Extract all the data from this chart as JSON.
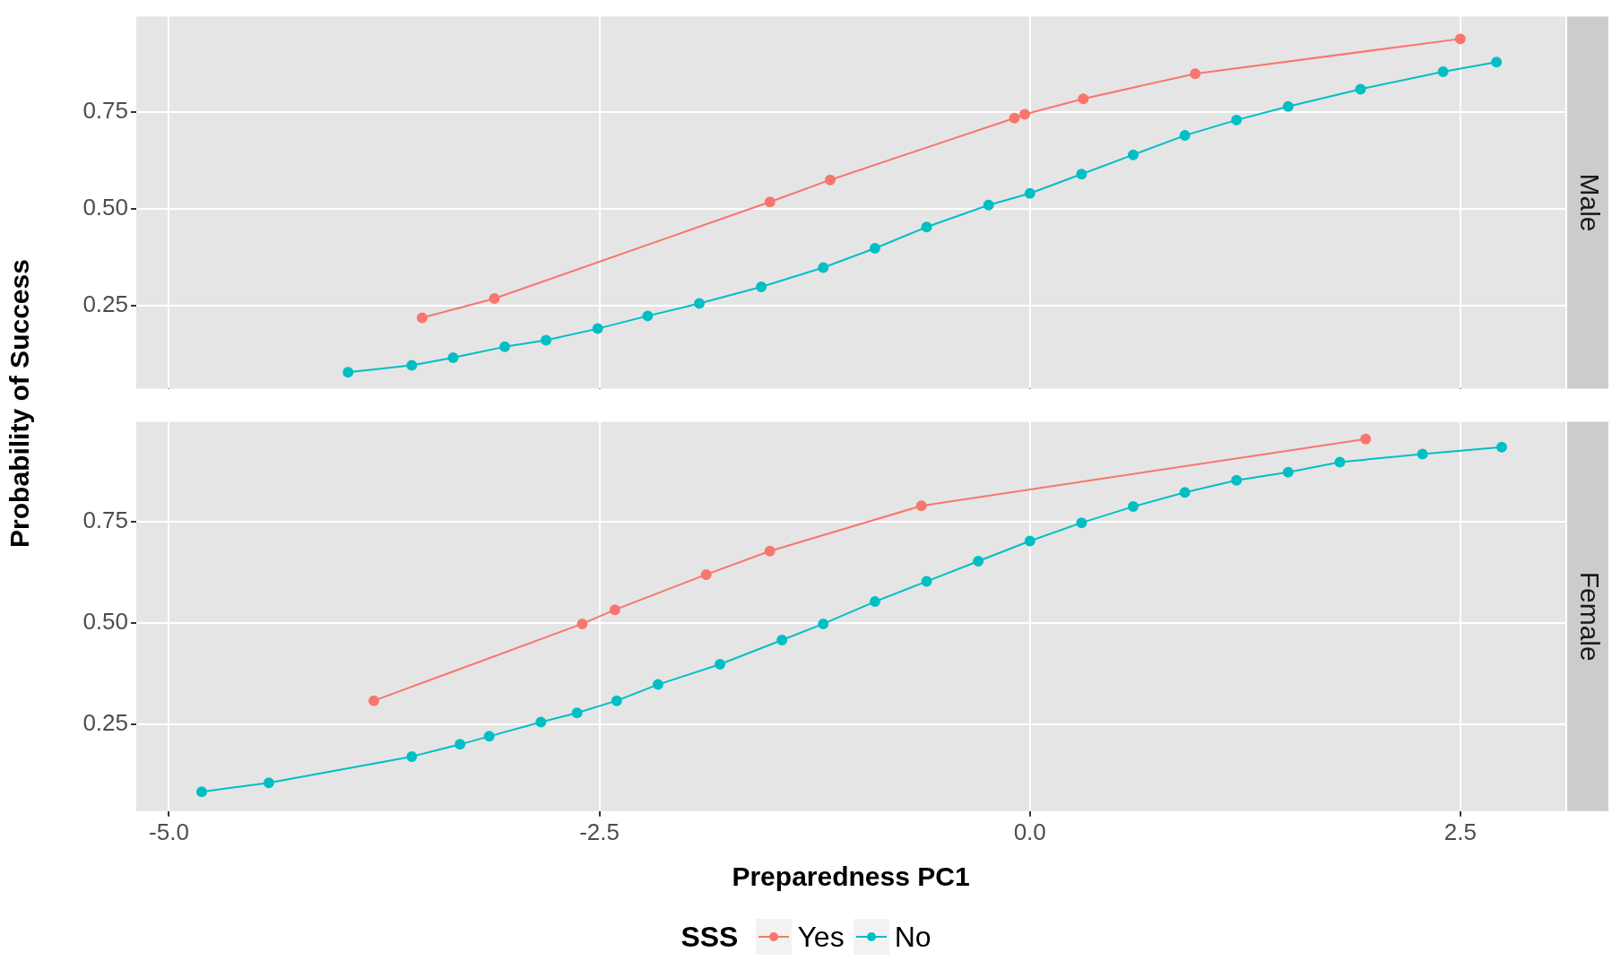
{
  "chart_data": [
    {
      "type": "line",
      "title": "Male",
      "ylabel": "Probability of Success",
      "legend": "bottom",
      "legend_title": "SSS",
      "marker": "circle",
      "grid": true,
      "tick_labels": "y",
      "xlim": [
        -5.19,
        3.11
      ],
      "ylim": [
        0.035,
        0.9975
      ],
      "xticks": [
        {
          "value": -5,
          "label": null
        },
        {
          "value": -2.5,
          "label": null
        },
        {
          "value": 0,
          "label": null
        },
        {
          "value": 2.5,
          "label": null
        }
      ],
      "yticks": [
        {
          "value": 0.25,
          "label": "0.25"
        },
        {
          "value": 0.5,
          "label": "0.50"
        },
        {
          "value": 0.75,
          "label": "0.75"
        }
      ],
      "series": [
        {
          "name": "Yes",
          "color": "#f8766d",
          "x": [
            -3.53,
            -3.11,
            -1.51,
            -1.16,
            -0.09,
            -0.03,
            0.31,
            0.96,
            2.5
          ],
          "values": [
            0.218,
            0.268,
            0.518,
            0.575,
            0.735,
            0.745,
            0.785,
            0.85,
            0.94
          ]
        },
        {
          "name": "No",
          "color": "#00bfc4",
          "x": [
            -3.96,
            -3.59,
            -3.35,
            -3.05,
            -2.81,
            -2.51,
            -2.22,
            -1.92,
            -1.56,
            -1.2,
            -0.9,
            -0.6,
            -0.24,
            0,
            0.3,
            0.6,
            0.9,
            1.2,
            1.5,
            1.92,
            2.4,
            2.71
          ],
          "values": [
            0.077,
            0.095,
            0.115,
            0.143,
            0.16,
            0.19,
            0.223,
            0.255,
            0.298,
            0.348,
            0.398,
            0.453,
            0.51,
            0.54,
            0.59,
            0.64,
            0.69,
            0.73,
            0.765,
            0.81,
            0.855,
            0.88
          ]
        }
      ]
    },
    {
      "type": "line",
      "title": "Female",
      "xlabel": "Preparedness PC1",
      "marker": "circle",
      "grid": true,
      "xlim": [
        -5.19,
        3.11
      ],
      "ylim": [
        0.035,
        0.9975
      ],
      "xticks": [
        {
          "value": -5,
          "label": "-5.0"
        },
        {
          "value": -2.5,
          "label": "-2.5"
        },
        {
          "value": 0,
          "label": "0.0"
        },
        {
          "value": 2.5,
          "label": "2.5"
        }
      ],
      "yticks": [
        {
          "value": 0.25,
          "label": "0.25"
        },
        {
          "value": 0.5,
          "label": "0.50"
        },
        {
          "value": 0.75,
          "label": "0.75"
        }
      ],
      "series": [
        {
          "color": "#f8766d",
          "x": [
            -3.81,
            -2.6,
            -2.41,
            -1.88,
            -1.51,
            -0.63,
            1.95
          ],
          "values": [
            0.308,
            0.498,
            0.533,
            0.62,
            0.678,
            0.79,
            0.955
          ]
        },
        {
          "color": "#00bfc4",
          "x": [
            -4.81,
            -4.42,
            -3.59,
            -3.31,
            -3.14,
            -2.84,
            -2.63,
            -2.4,
            -2.16,
            -1.8,
            -1.44,
            -1.2,
            -0.9,
            -0.6,
            -0.3,
            0,
            0.3,
            0.6,
            0.9,
            1.2,
            1.5,
            1.8,
            2.28,
            2.74
          ],
          "values": [
            0.083,
            0.105,
            0.17,
            0.2,
            0.22,
            0.255,
            0.278,
            0.308,
            0.348,
            0.398,
            0.458,
            0.498,
            0.553,
            0.603,
            0.653,
            0.703,
            0.748,
            0.788,
            0.823,
            0.853,
            0.873,
            0.898,
            0.918,
            0.935
          ]
        }
      ]
    }
  ]
}
